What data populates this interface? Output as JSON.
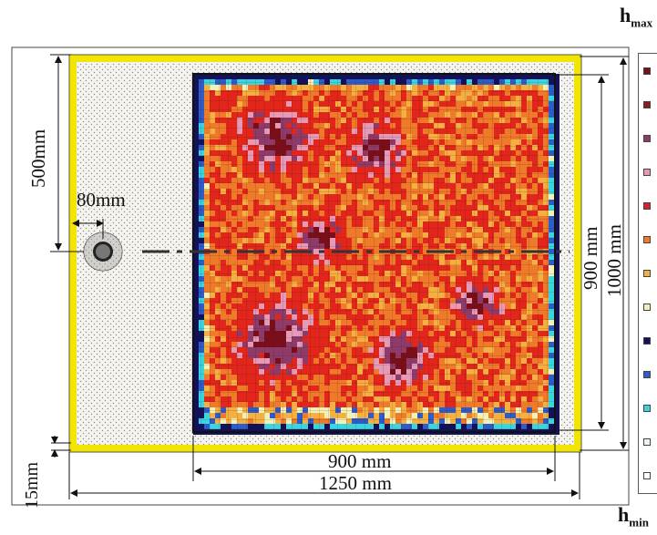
{
  "figure": {
    "labels": {
      "h_main": "h",
      "h_max_sub": "max",
      "h_min_sub": "min",
      "dim_500": "500mm",
      "dim_80": "80mm",
      "dim_15": "15mm",
      "dim_900_v": "900 mm",
      "dim_1000_v": "1000 mm",
      "dim_900_h": "900 mm",
      "dim_1250_h": "1250 mm"
    },
    "colors": {
      "frame_yellow": "#f2e600",
      "sand": "#e9e6de",
      "dark_red": "#7a0f1a",
      "purple": "#8e3b6a",
      "pink": "#e59ab8",
      "red": "#e3261c",
      "orange": "#ef7a2a",
      "light_orange": "#f4b040",
      "cream": "#f3f0b8",
      "navy": "#11125a",
      "blue": "#2e5cc8",
      "cyan": "#3ad6df",
      "very_light": "#f2f6f8",
      "white": "#ffffff"
    },
    "legend": [
      "#7a0f1a",
      "#8a1b22",
      "#8e3b6a",
      "#e59ab8",
      "#d92028",
      "#ef7a2a",
      "#f4b040",
      "#f3f0b8",
      "#11125a",
      "#2e5cc8",
      "#3ad6df",
      "#e8f4f7",
      "#ffffff"
    ]
  }
}
